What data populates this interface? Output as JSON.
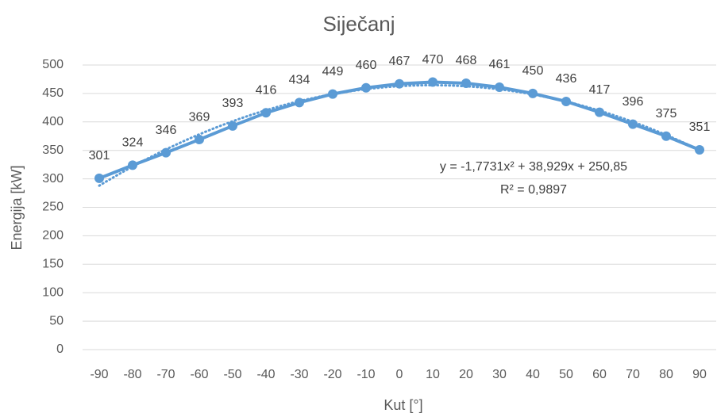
{
  "chart_data": {
    "type": "line",
    "title": "Siječanj",
    "x_label": "Kut [°]",
    "y_label": "Energija [kW]",
    "categories": [
      -90,
      -80,
      -70,
      -60,
      -50,
      -40,
      -30,
      -20,
      -10,
      0,
      10,
      20,
      30,
      40,
      50,
      60,
      70,
      80,
      90
    ],
    "series": [
      {
        "name": "Energija",
        "color": "#5b9bd5",
        "values": [
          301,
          324,
          346,
          369,
          393,
          416,
          434,
          449,
          460,
          467,
          470,
          468,
          461,
          450,
          436,
          417,
          396,
          375,
          351
        ]
      }
    ],
    "ylim": [
      0,
      500
    ],
    "yticks": [
      0,
      50,
      100,
      150,
      200,
      250,
      300,
      350,
      400,
      450,
      500
    ],
    "grid": true,
    "data_labels": true,
    "trendline": {
      "type": "polynomial",
      "coefficients": [
        -1.7731,
        38.929,
        250.85
      ],
      "equation": "y = -1,7731x² + 38,929x + 250,85",
      "r_squared": "R² = 0,9897"
    }
  }
}
